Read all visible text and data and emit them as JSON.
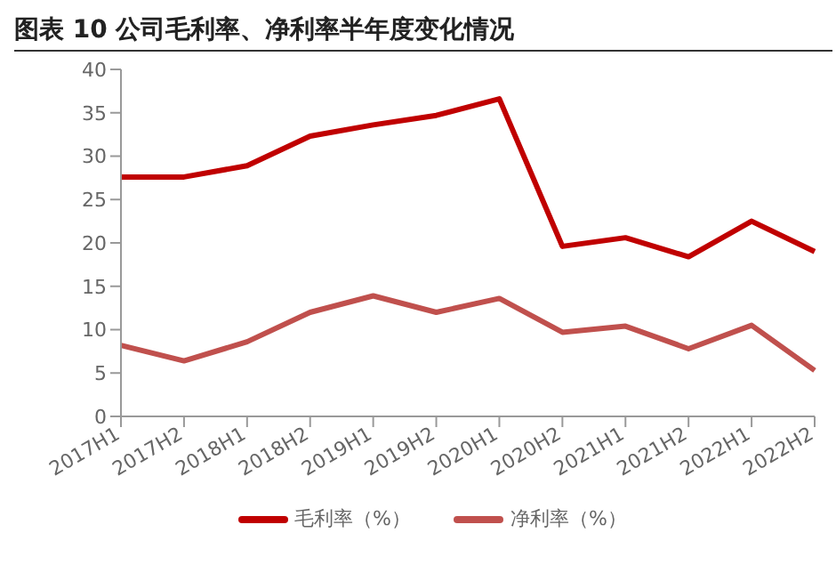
{
  "chart_data": {
    "type": "line",
    "title": "图表 10 公司毛利率、净利率半年度变化情况",
    "categories": [
      "2017H1",
      "2017H2",
      "2018H1",
      "2018H2",
      "2019H1",
      "2019H2",
      "2020H1",
      "2020H2",
      "2021H1",
      "2021H2",
      "2022H1",
      "2022H2"
    ],
    "series": [
      {
        "name": "毛利率（%）",
        "color": "#c00000",
        "values": [
          27.6,
          27.6,
          28.9,
          32.3,
          33.6,
          34.7,
          36.6,
          19.6,
          20.6,
          18.4,
          22.5,
          19.0
        ]
      },
      {
        "name": "净利率（%）",
        "color": "#c0504d",
        "values": [
          8.2,
          6.4,
          8.6,
          12.0,
          13.9,
          12.0,
          13.6,
          9.7,
          10.4,
          7.8,
          10.5,
          5.3
        ]
      }
    ],
    "ylim": [
      0,
      40
    ],
    "yticks": [
      0,
      5,
      10,
      15,
      20,
      25,
      30,
      35,
      40
    ],
    "grid": false,
    "legend": "bottom",
    "marker": "none",
    "line_style": "solid"
  }
}
